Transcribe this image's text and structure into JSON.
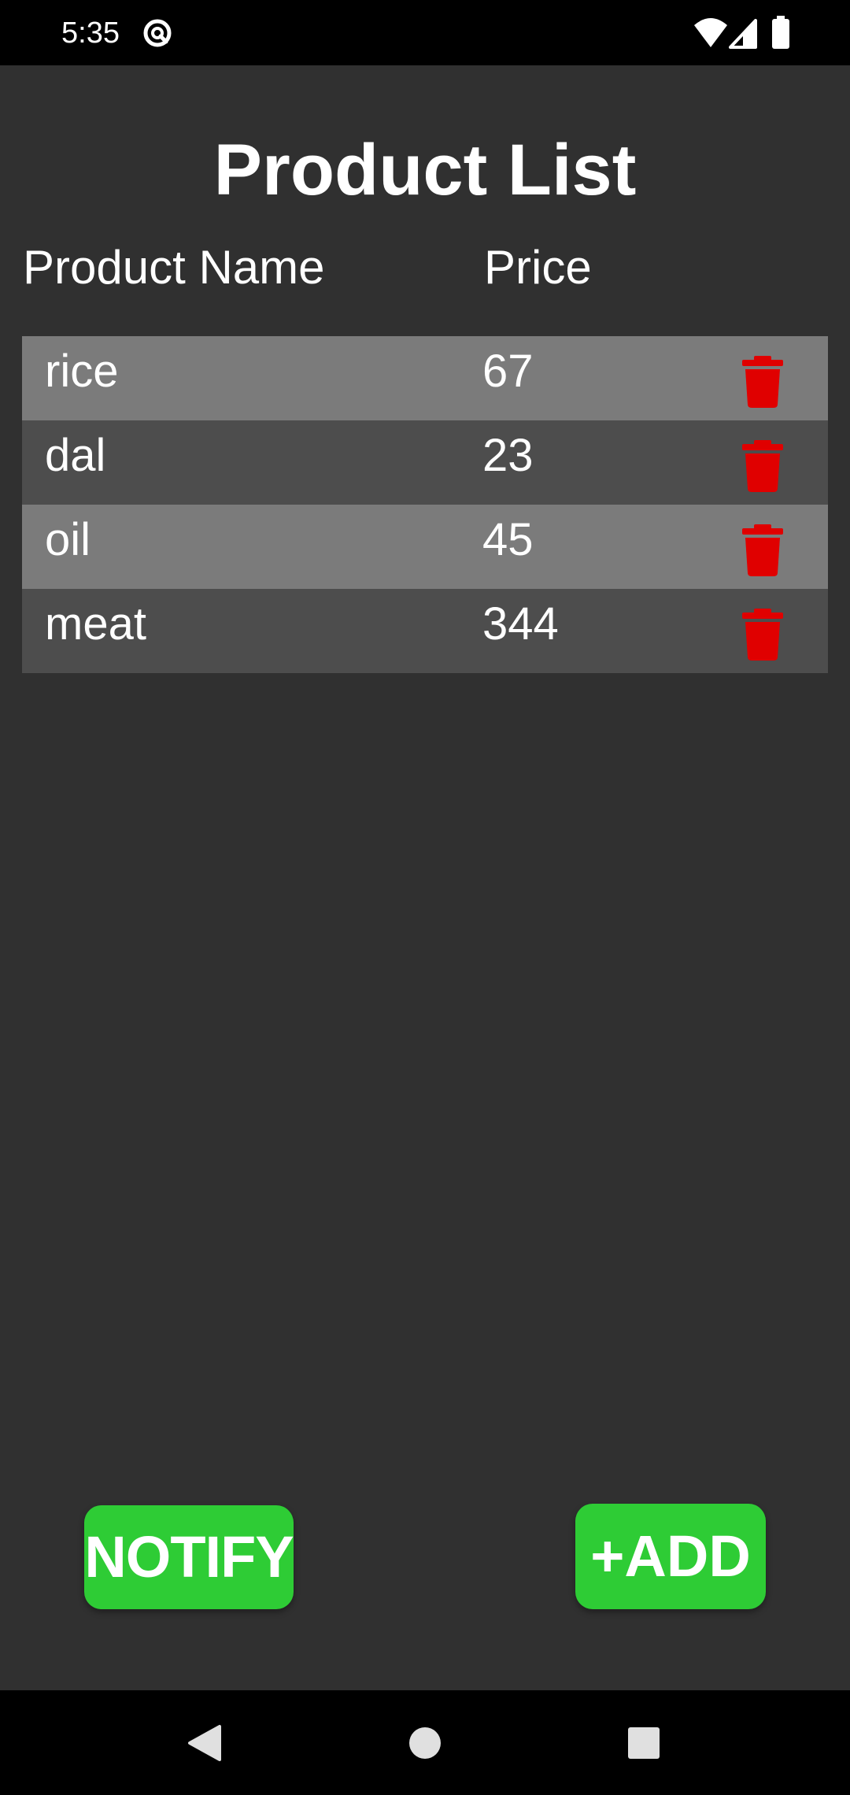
{
  "status_bar": {
    "time": "5:35",
    "icons": [
      "do-not-disturb-icon",
      "wifi-icon",
      "cellular-signal-icon",
      "battery-icon"
    ]
  },
  "page": {
    "title": "Product List"
  },
  "table": {
    "headers": {
      "name": "Product Name",
      "price": "Price"
    },
    "rows": [
      {
        "name": "rice",
        "price": "67"
      },
      {
        "name": "dal",
        "price": "23"
      },
      {
        "name": "oil",
        "price": "45"
      },
      {
        "name": "meat",
        "price": "344"
      }
    ],
    "delete_icon": "trash-icon"
  },
  "actions": {
    "notify_label": "NOTIFY",
    "add_label": "+ADD"
  },
  "nav_bar": {
    "icons": [
      "back-icon",
      "home-icon",
      "recents-icon"
    ]
  },
  "colors": {
    "background": "#303030",
    "row_light": "#7b7b7b",
    "row_dark": "#4d4d4d",
    "accent_green": "#2ecc35",
    "delete_red": "#e00000",
    "text": "#ffffff"
  }
}
